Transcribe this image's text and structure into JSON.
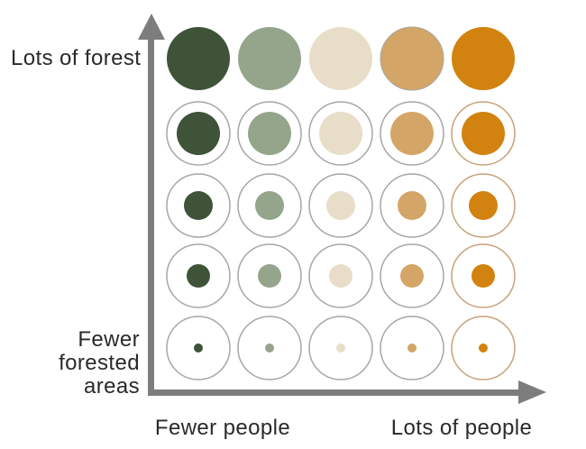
{
  "page": {
    "background": "#ffffff"
  },
  "chart_data": {
    "type": "scatter",
    "subtype": "bivariate-bubble-matrix-legend",
    "title": "",
    "grid": {
      "rows": 5,
      "cols": 5
    },
    "x_axis": {
      "label_left": "Fewer people",
      "label_right": "Lots of people"
    },
    "y_axis": {
      "label_top": "Lots of forest",
      "label_bottom": "Fewer\nforested areas"
    },
    "axis_color": "#7d7d7d",
    "label_color": "#2a2a2a",
    "columns": [
      {
        "name": "people-level-1",
        "fill": "#3e5338",
        "ring": "#a6a6a6"
      },
      {
        "name": "people-level-2",
        "fill": "#94a58b",
        "ring": "#a6a6a6"
      },
      {
        "name": "people-level-3",
        "fill": "#e8ddc8",
        "ring": "#a6a6a6"
      },
      {
        "name": "people-level-4",
        "fill": "#d3a667",
        "ring": "#a6a6a6"
      },
      {
        "name": "people-level-5",
        "fill": "#d2820e",
        "ring": "#c8a179"
      }
    ],
    "row_fill_radii": [
      35,
      24,
      16,
      13,
      5
    ],
    "ring_radius": 35,
    "ring_stroke_width": 1.5,
    "top_row_has_ring": false,
    "top_row_edge_strokes": [
      null,
      null,
      null,
      "#a6a6a6",
      null
    ]
  }
}
